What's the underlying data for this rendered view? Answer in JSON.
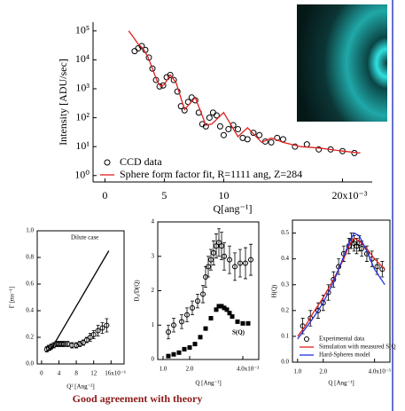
{
  "chart_data": [
    {
      "type": "scatter",
      "y_label": "Intensity [ADU/sec]",
      "x_label": "Q[ang⁻¹]",
      "ylog": true,
      "xlim": [
        -1,
        22.5
      ],
      "xticks": [
        0,
        5,
        10,
        {
          "value": 20,
          "label": "20x10⁻³"
        }
      ],
      "ylim": [
        0.6,
        200000
      ],
      "yticks": [
        {
          "value": 1,
          "label": "10⁰"
        },
        {
          "value": 10,
          "label": "10¹"
        },
        {
          "value": 100,
          "label": "10²"
        },
        {
          "value": 1000,
          "label": "10³"
        },
        {
          "value": 10000,
          "label": "10⁴"
        },
        {
          "value": 100000,
          "label": "10⁵"
        }
      ],
      "legend": "lower left",
      "annotations": [],
      "series": [
        {
          "name": "CCD data",
          "marker": "circle",
          "color": "#000000",
          "x": [
            2.5,
            2.8,
            3.1,
            3.4,
            3.7,
            4.0,
            4.3,
            4.6,
            4.9,
            5.2,
            5.5,
            5.8,
            6.1,
            6.4,
            6.7,
            7.0,
            7.3,
            7.6,
            7.9,
            8.2,
            8.5,
            8.8,
            9.1,
            9.4,
            9.7,
            10.0,
            10.4,
            10.8,
            11.2,
            11.6,
            12.0,
            12.5,
            13.0,
            13.5,
            14.0,
            14.5,
            15,
            16,
            17,
            18,
            19,
            20,
            21
          ],
          "values": [
            20000,
            25000,
            30000,
            22000,
            12000,
            5000,
            2000,
            1200,
            1300,
            2500,
            3000,
            2000,
            800,
            250,
            180,
            350,
            500,
            400,
            150,
            60,
            50,
            100,
            150,
            120,
            50,
            25,
            40,
            55,
            40,
            20,
            18,
            30,
            25,
            15,
            14,
            20,
            18,
            10,
            12,
            8,
            8,
            7,
            6
          ]
        },
        {
          "name": "Sphere form factor fit, R=1111 ang, Z=284",
          "marker": "line",
          "color": "#e02020",
          "x": [
            2.0,
            2.4,
            2.8,
            3.2,
            3.6,
            4.0,
            4.4,
            4.7,
            5.0,
            5.5,
            6.0,
            6.7,
            7.6,
            8.5,
            9.0,
            10.0,
            11.2,
            12.0,
            13.2,
            14.0,
            15,
            16.5,
            18,
            20,
            21.5
          ],
          "values": [
            100000,
            60000,
            35000,
            25000,
            13000,
            5000,
            1800,
            1200,
            1400,
            3000,
            1600,
            190,
            500,
            55,
            60,
            150,
            22,
            45,
            14,
            20,
            14,
            10,
            9,
            7,
            6
          ]
        }
      ]
    },
    {
      "type": "scatter",
      "y_label": "Γ [ms⁻¹]",
      "x_label": "Q² [Ang⁻²]",
      "ylog": false,
      "xlim": [
        -1,
        19
      ],
      "xticks": [
        0,
        4,
        8,
        12,
        {
          "value": 16,
          "label": "16x10⁻⁶"
        }
      ],
      "ylim": [
        0,
        1
      ],
      "yticks": [
        {
          "value": 0,
          "label": "0.0"
        },
        0.2,
        0.4,
        0.6,
        0.8,
        {
          "value": 1,
          "label": "1.0"
        }
      ],
      "annotations": [
        "Dilute case"
      ],
      "series": [
        {
          "marker": "circle",
          "color": "#000000",
          "x": [
            1.2,
            1.6,
            2.2,
            2.8,
            3.4,
            4,
            4.6,
            5.2,
            6,
            7,
            8,
            8.8,
            9.6,
            10.4,
            11.2,
            12,
            13,
            14,
            15
          ],
          "values": [
            0.11,
            0.12,
            0.13,
            0.14,
            0.15,
            0.15,
            0.15,
            0.15,
            0.15,
            0.14,
            0.14,
            0.15,
            0.16,
            0.18,
            0.2,
            0.22,
            0.25,
            0.27,
            0.29
          ],
          "errors": [
            0.02,
            0.02,
            0.02,
            0.02,
            0.02,
            0.02,
            0.02,
            0.02,
            0.02,
            0.02,
            0.02,
            0.02,
            0.02,
            0.02,
            0.03,
            0.03,
            0.04,
            0.04,
            0.05
          ]
        },
        {
          "marker": "line",
          "color": "#000000",
          "x": [
            2,
            15.5
          ],
          "values": [
            0.1,
            0.85
          ]
        }
      ]
    },
    {
      "type": "scatter",
      "y_label": "D₀/D(Q)",
      "x_label": "Q [Ang⁻¹]",
      "ylog": false,
      "xlim": [
        0.8,
        4.6
      ],
      "xticks": [
        {
          "value": 1,
          "label": "1.0"
        },
        {
          "value": 2,
          "label": "2.0"
        },
        {
          "value": 4,
          "label": "4.0x10⁻³"
        }
      ],
      "ylim": [
        0,
        4
      ],
      "yticks": [
        0,
        1,
        2,
        3,
        4
      ],
      "annotations": [
        "S(Q)"
      ],
      "series": [
        {
          "marker": "circle",
          "color": "#000000",
          "x": [
            1.2,
            1.4,
            1.7,
            1.9,
            2.1,
            2.3,
            2.5,
            2.6,
            2.7,
            2.8,
            2.9,
            3.0,
            3.1,
            3.2,
            3.3,
            3.5,
            3.7,
            3.9,
            4.1,
            4.3
          ],
          "values": [
            0.8,
            1.0,
            1.1,
            1.3,
            1.5,
            1.7,
            1.9,
            2.4,
            2.7,
            2.9,
            3.1,
            3.3,
            3.4,
            3.3,
            3.0,
            2.9,
            2.7,
            2.8,
            2.8,
            2.9
          ],
          "errors": [
            0.2,
            0.2,
            0.2,
            0.2,
            0.2,
            0.2,
            0.25,
            0.3,
            0.3,
            0.3,
            0.35,
            0.35,
            0.4,
            0.4,
            0.4,
            0.4,
            0.4,
            0.4,
            0.45,
            0.45
          ]
        },
        {
          "marker": "square",
          "color": "#000000",
          "x": [
            1.2,
            1.4,
            1.6,
            1.8,
            2.0,
            2.2,
            2.4,
            2.6,
            2.8,
            3.0,
            3.1,
            3.2,
            3.3,
            3.4,
            3.5,
            3.6,
            3.8,
            4.0,
            4.2
          ],
          "values": [
            0.1,
            0.15,
            0.2,
            0.3,
            0.35,
            0.45,
            0.65,
            0.9,
            1.2,
            1.45,
            1.55,
            1.55,
            1.5,
            1.45,
            1.35,
            1.25,
            1.1,
            1.05,
            1.05
          ]
        }
      ]
    },
    {
      "type": "scatter",
      "y_label": "H(Q)",
      "x_label": "Q [Ang⁻¹]",
      "ylog": false,
      "xlim": [
        0.8,
        4.6
      ],
      "xticks": [
        {
          "value": 1,
          "label": "1.0"
        },
        {
          "value": 2,
          "label": "2.0"
        },
        {
          "value": 4,
          "label": "4.0x10⁻³"
        }
      ],
      "ylim": [
        0,
        0.55
      ],
      "yticks": [
        {
          "value": 0,
          "label": "0.0"
        },
        0.1,
        0.2,
        0.3,
        0.4,
        0.5
      ],
      "legend": "lower left",
      "annotations": [],
      "series": [
        {
          "name": "Experimental data",
          "marker": "circle",
          "color": "#000000",
          "x": [
            1.2,
            1.5,
            1.8,
            2.0,
            2.2,
            2.4,
            2.6,
            2.8,
            3.0,
            3.1,
            3.2,
            3.3,
            3.4,
            3.5,
            3.7,
            3.9,
            4.1,
            4.3
          ],
          "values": [
            0.14,
            0.17,
            0.2,
            0.23,
            0.27,
            0.32,
            0.37,
            0.42,
            0.45,
            0.47,
            0.46,
            0.45,
            0.46,
            0.44,
            0.42,
            0.4,
            0.37,
            0.36
          ],
          "errors": [
            0.03,
            0.03,
            0.03,
            0.03,
            0.03,
            0.03,
            0.03,
            0.03,
            0.03,
            0.03,
            0.03,
            0.03,
            0.03,
            0.03,
            0.03,
            0.03,
            0.03,
            0.03
          ]
        },
        {
          "name": "Simulation with measured S(Q",
          "marker": "line",
          "color": "#e02020",
          "x": [
            1.0,
            1.3,
            1.6,
            2.0,
            2.4,
            2.8,
            3.0,
            3.2,
            3.4,
            3.7,
            4.0,
            4.4
          ],
          "values": [
            0.1,
            0.14,
            0.19,
            0.25,
            0.32,
            0.4,
            0.45,
            0.48,
            0.47,
            0.44,
            0.4,
            0.36
          ]
        },
        {
          "name": "Hard-Spheres model",
          "marker": "line",
          "color": "#2030e0",
          "x": [
            1.0,
            1.3,
            1.6,
            2.0,
            2.4,
            2.8,
            3.0,
            3.2,
            3.4,
            3.7,
            4.0,
            4.4
          ],
          "values": [
            0.09,
            0.13,
            0.17,
            0.23,
            0.31,
            0.41,
            0.46,
            0.5,
            0.49,
            0.43,
            0.36,
            0.3
          ]
        }
      ]
    }
  ],
  "caption": "Good agreement with theory"
}
